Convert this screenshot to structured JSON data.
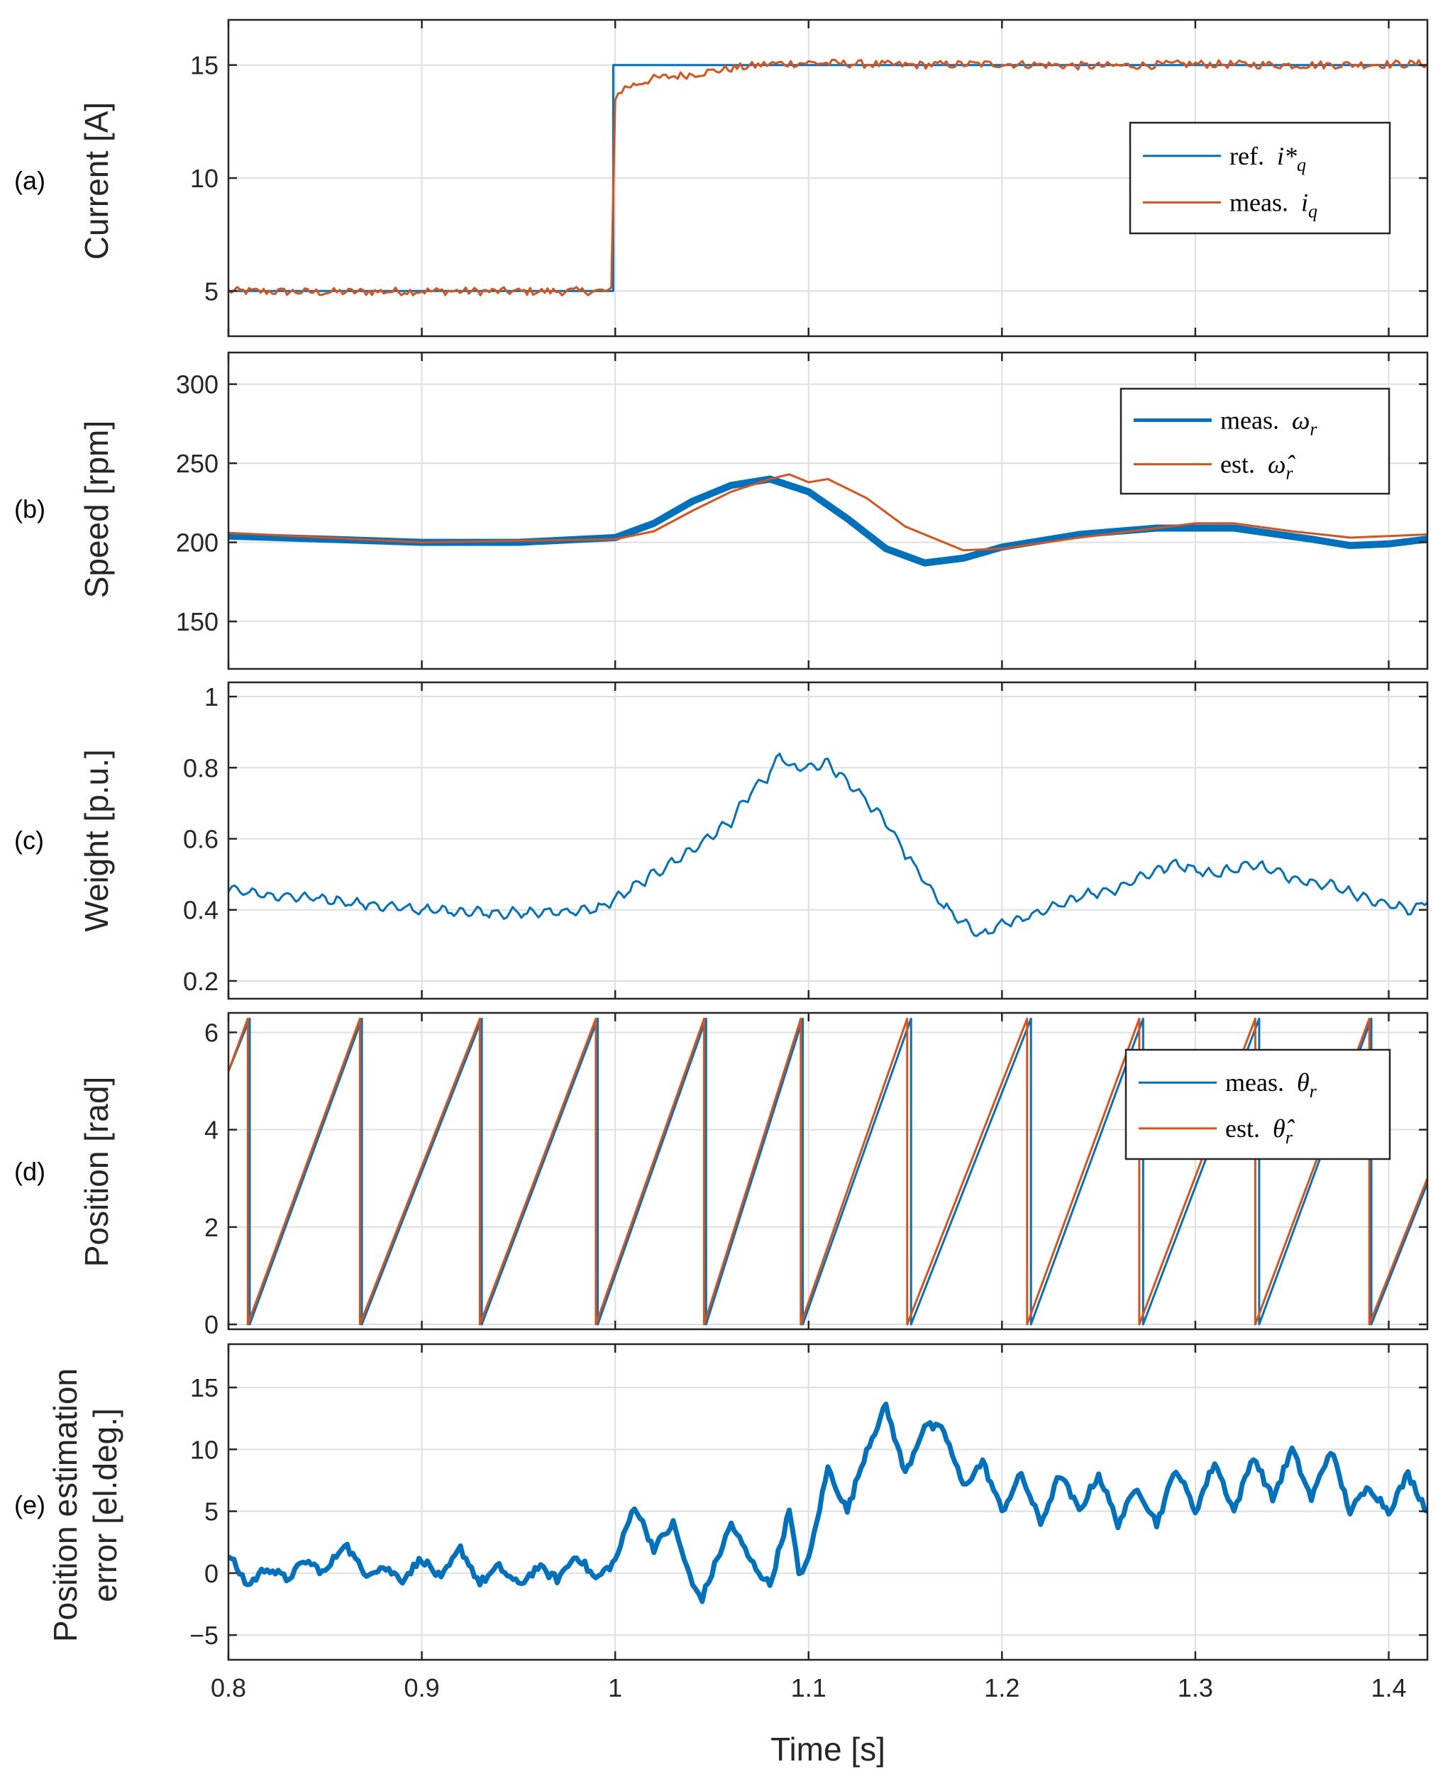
{
  "chart_data": [
    {
      "type": "line",
      "panel_label": "(a)",
      "ylabel": "Current [A]",
      "xlim": [
        0.8,
        1.42
      ],
      "ylim": [
        3,
        17
      ],
      "yticks": [
        5,
        10,
        15
      ],
      "grid": true,
      "legend": {
        "placement": "right-middle",
        "entries": [
          {
            "text": "ref.",
            "symbol": "i*",
            "sub": "q"
          },
          {
            "text": "meas.",
            "symbol": "i",
            "sub": "q"
          }
        ]
      },
      "series": [
        {
          "name": "ref. i_q*",
          "color": "#0072BD",
          "width": 3,
          "points": [
            [
              0.8,
              5
            ],
            [
              0.999,
              5
            ],
            [
              0.999,
              15
            ],
            [
              1.42,
              15
            ]
          ]
        },
        {
          "name": "meas. i_q",
          "color": "#D95319",
          "width": 3,
          "noise": 0.18,
          "points": [
            [
              0.8,
              5.0
            ],
            [
              0.85,
              4.95
            ],
            [
              0.9,
              5.0
            ],
            [
              0.95,
              4.98
            ],
            [
              0.998,
              5.0
            ],
            [
              1.0,
              13.6
            ],
            [
              1.005,
              14.0
            ],
            [
              1.02,
              14.4
            ],
            [
              1.04,
              14.6
            ],
            [
              1.06,
              14.85
            ],
            [
              1.08,
              15.05
            ],
            [
              1.1,
              15.1
            ],
            [
              1.15,
              15.0
            ],
            [
              1.2,
              15.05
            ],
            [
              1.25,
              14.95
            ],
            [
              1.3,
              15.05
            ],
            [
              1.35,
              15.0
            ],
            [
              1.42,
              15.05
            ]
          ]
        }
      ]
    },
    {
      "type": "line",
      "panel_label": "(b)",
      "ylabel": "Speed [rpm]",
      "xlim": [
        0.8,
        1.42
      ],
      "ylim": [
        120,
        320
      ],
      "yticks": [
        150,
        200,
        250,
        300
      ],
      "grid": true,
      "legend": {
        "placement": "top-right",
        "entries": [
          {
            "text": "meas.",
            "symbol": "ω",
            "sub": "r"
          },
          {
            "text": "est.",
            "symbol": "ω̂",
            "sub": "r"
          }
        ]
      },
      "series": [
        {
          "name": "meas. ω_r",
          "color": "#0072BD",
          "width": 10,
          "points": [
            [
              0.8,
              204
            ],
            [
              0.85,
              202
            ],
            [
              0.9,
              200
            ],
            [
              0.95,
              200
            ],
            [
              1.0,
              203
            ],
            [
              1.02,
              212
            ],
            [
              1.04,
              226
            ],
            [
              1.06,
              236
            ],
            [
              1.08,
              240
            ],
            [
              1.1,
              232
            ],
            [
              1.12,
              215
            ],
            [
              1.14,
              196
            ],
            [
              1.16,
              187
            ],
            [
              1.18,
              190
            ],
            [
              1.2,
              197
            ],
            [
              1.24,
              205
            ],
            [
              1.28,
              209
            ],
            [
              1.32,
              209
            ],
            [
              1.36,
              202
            ],
            [
              1.38,
              198
            ],
            [
              1.4,
              199
            ],
            [
              1.42,
              202
            ]
          ]
        },
        {
          "name": "est. ω̂_r",
          "color": "#D95319",
          "width": 3,
          "points": [
            [
              0.8,
              206
            ],
            [
              0.85,
              203
            ],
            [
              0.9,
              200
            ],
            [
              0.95,
              201
            ],
            [
              1.0,
              202
            ],
            [
              1.02,
              207
            ],
            [
              1.04,
              220
            ],
            [
              1.06,
              232
            ],
            [
              1.08,
              240
            ],
            [
              1.09,
              243
            ],
            [
              1.1,
              238
            ],
            [
              1.11,
              240
            ],
            [
              1.13,
              228
            ],
            [
              1.15,
              210
            ],
            [
              1.17,
              200
            ],
            [
              1.18,
              195
            ],
            [
              1.2,
              196
            ],
            [
              1.24,
              203
            ],
            [
              1.28,
              209
            ],
            [
              1.3,
              212
            ],
            [
              1.32,
              212
            ],
            [
              1.35,
              207
            ],
            [
              1.38,
              203
            ],
            [
              1.42,
              205
            ]
          ]
        }
      ]
    },
    {
      "type": "line",
      "panel_label": "(c)",
      "ylabel": "Weight [p.u.]",
      "xlim": [
        0.8,
        1.42
      ],
      "ylim": [
        0.15,
        1.04
      ],
      "yticks": [
        0.2,
        0.4,
        0.6,
        0.8,
        1
      ],
      "grid": true,
      "series": [
        {
          "name": "weight",
          "color": "#0072BD",
          "width": 3,
          "ripple": 0.012,
          "points": [
            [
              0.8,
              0.46
            ],
            [
              0.82,
              0.44
            ],
            [
              0.85,
              0.43
            ],
            [
              0.88,
              0.41
            ],
            [
              0.9,
              0.4
            ],
            [
              0.95,
              0.39
            ],
            [
              0.99,
              0.4
            ],
            [
              1.0,
              0.43
            ],
            [
              1.02,
              0.5
            ],
            [
              1.04,
              0.57
            ],
            [
              1.06,
              0.65
            ],
            [
              1.07,
              0.73
            ],
            [
              1.08,
              0.78
            ],
            [
              1.085,
              0.84
            ],
            [
              1.09,
              0.8
            ],
            [
              1.1,
              0.8
            ],
            [
              1.11,
              0.81
            ],
            [
              1.12,
              0.76
            ],
            [
              1.14,
              0.65
            ],
            [
              1.15,
              0.56
            ],
            [
              1.16,
              0.48
            ],
            [
              1.17,
              0.41
            ],
            [
              1.18,
              0.36
            ],
            [
              1.19,
              0.33
            ],
            [
              1.2,
              0.36
            ],
            [
              1.22,
              0.39
            ],
            [
              1.24,
              0.44
            ],
            [
              1.26,
              0.46
            ],
            [
              1.27,
              0.49
            ],
            [
              1.29,
              0.53
            ],
            [
              1.31,
              0.5
            ],
            [
              1.33,
              0.53
            ],
            [
              1.35,
              0.49
            ],
            [
              1.37,
              0.47
            ],
            [
              1.39,
              0.43
            ],
            [
              1.41,
              0.4
            ],
            [
              1.42,
              0.42
            ]
          ]
        }
      ]
    },
    {
      "type": "line",
      "panel_label": "(d)",
      "ylabel": "Position [rad]",
      "xlim": [
        0.8,
        1.42
      ],
      "ylim": [
        -0.1,
        6.4
      ],
      "yticks": [
        0,
        2,
        4,
        6
      ],
      "grid": true,
      "legend": {
        "placement": "top-right",
        "entries": [
          {
            "text": "meas.",
            "symbol": "θ",
            "sub": "r"
          },
          {
            "text": "est.",
            "symbol": "θ̂",
            "sub": "r"
          }
        ]
      },
      "series": [
        {
          "name": "meas. θ_r",
          "color": "#0072BD",
          "width": 3,
          "points": [
            [
              0.8,
              5.2
            ],
            [
              0.811,
              6.28
            ],
            [
              0.811,
              0
            ],
            [
              0.869,
              6.28
            ],
            [
              0.869,
              0
            ],
            [
              0.931,
              6.28
            ],
            [
              0.931,
              0
            ],
            [
              0.991,
              6.28
            ],
            [
              0.991,
              0
            ],
            [
              1.047,
              6.28
            ],
            [
              1.047,
              0
            ],
            [
              1.097,
              6.28
            ],
            [
              1.097,
              0
            ],
            [
              1.153,
              6.28
            ],
            [
              1.153,
              0
            ],
            [
              1.215,
              6.28
            ],
            [
              1.215,
              0
            ],
            [
              1.273,
              6.28
            ],
            [
              1.273,
              0
            ],
            [
              1.333,
              6.28
            ],
            [
              1.333,
              0
            ],
            [
              1.391,
              6.28
            ],
            [
              1.391,
              0
            ],
            [
              1.42,
              2.9
            ]
          ]
        },
        {
          "name": "est. θ̂_r",
          "color": "#D95319",
          "width": 3,
          "points": [
            [
              0.8,
              5.2
            ],
            [
              0.81,
              6.28
            ],
            [
              0.81,
              0
            ],
            [
              0.868,
              6.28
            ],
            [
              0.868,
              0
            ],
            [
              0.93,
              6.28
            ],
            [
              0.93,
              0
            ],
            [
              0.99,
              6.28
            ],
            [
              0.99,
              0
            ],
            [
              1.046,
              6.28
            ],
            [
              1.046,
              0
            ],
            [
              1.096,
              6.28
            ],
            [
              1.096,
              0
            ],
            [
              1.151,
              6.28
            ],
            [
              1.151,
              0
            ],
            [
              1.213,
              6.28
            ],
            [
              1.213,
              0
            ],
            [
              1.271,
              6.28
            ],
            [
              1.271,
              0
            ],
            [
              1.331,
              6.28
            ],
            [
              1.331,
              0
            ],
            [
              1.39,
              6.28
            ],
            [
              1.39,
              0
            ],
            [
              1.42,
              3.0
            ]
          ]
        }
      ]
    },
    {
      "type": "line",
      "panel_label": "(e)",
      "ylabel_lines": [
        "Position estimation",
        "error [el.deg.]"
      ],
      "xlabel": "Time [s]",
      "xlim": [
        0.8,
        1.42
      ],
      "ylim": [
        -7,
        18.5
      ],
      "yticks": [
        -5,
        0,
        5,
        10,
        15
      ],
      "xticks": [
        0.8,
        0.9,
        1,
        1.1,
        1.2,
        1.3,
        1.4
      ],
      "grid": true,
      "series": [
        {
          "name": "position estimation error",
          "color": "#0072BD",
          "width": 7,
          "noise": 0.35,
          "points": [
            [
              0.8,
              1.5
            ],
            [
              0.81,
              -1
            ],
            [
              0.82,
              0.5
            ],
            [
              0.83,
              -0.5
            ],
            [
              0.84,
              1
            ],
            [
              0.85,
              0
            ],
            [
              0.86,
              2.5
            ],
            [
              0.87,
              0
            ],
            [
              0.88,
              0.5
            ],
            [
              0.89,
              -0.5
            ],
            [
              0.9,
              1.2
            ],
            [
              0.91,
              -0.5
            ],
            [
              0.92,
              2
            ],
            [
              0.93,
              -0.8
            ],
            [
              0.94,
              0.5
            ],
            [
              0.95,
              -1
            ],
            [
              0.96,
              0.5
            ],
            [
              0.97,
              -0.5
            ],
            [
              0.98,
              1.5
            ],
            [
              0.99,
              -0.5
            ],
            [
              1.0,
              1
            ],
            [
              1.01,
              5.5
            ],
            [
              1.02,
              2
            ],
            [
              1.03,
              4
            ],
            [
              1.04,
              -1
            ],
            [
              1.045,
              -2
            ],
            [
              1.05,
              0
            ],
            [
              1.06,
              4
            ],
            [
              1.07,
              1
            ],
            [
              1.08,
              -1
            ],
            [
              1.09,
              5
            ],
            [
              1.095,
              0
            ],
            [
              1.1,
              1
            ],
            [
              1.11,
              8.5
            ],
            [
              1.12,
              5
            ],
            [
              1.13,
              10
            ],
            [
              1.14,
              13.5
            ],
            [
              1.15,
              8
            ],
            [
              1.16,
              12
            ],
            [
              1.17,
              11.5
            ],
            [
              1.18,
              7
            ],
            [
              1.19,
              9
            ],
            [
              1.2,
              5
            ],
            [
              1.21,
              8
            ],
            [
              1.22,
              4
            ],
            [
              1.23,
              8
            ],
            [
              1.24,
              5
            ],
            [
              1.25,
              8
            ],
            [
              1.26,
              4
            ],
            [
              1.27,
              7
            ],
            [
              1.28,
              4
            ],
            [
              1.29,
              8.5
            ],
            [
              1.3,
              5
            ],
            [
              1.31,
              9
            ],
            [
              1.32,
              5
            ],
            [
              1.33,
              9.5
            ],
            [
              1.34,
              6
            ],
            [
              1.35,
              10
            ],
            [
              1.36,
              6
            ],
            [
              1.37,
              10
            ],
            [
              1.38,
              5
            ],
            [
              1.39,
              7
            ],
            [
              1.4,
              5
            ],
            [
              1.41,
              8
            ],
            [
              1.42,
              5
            ]
          ]
        }
      ]
    }
  ]
}
